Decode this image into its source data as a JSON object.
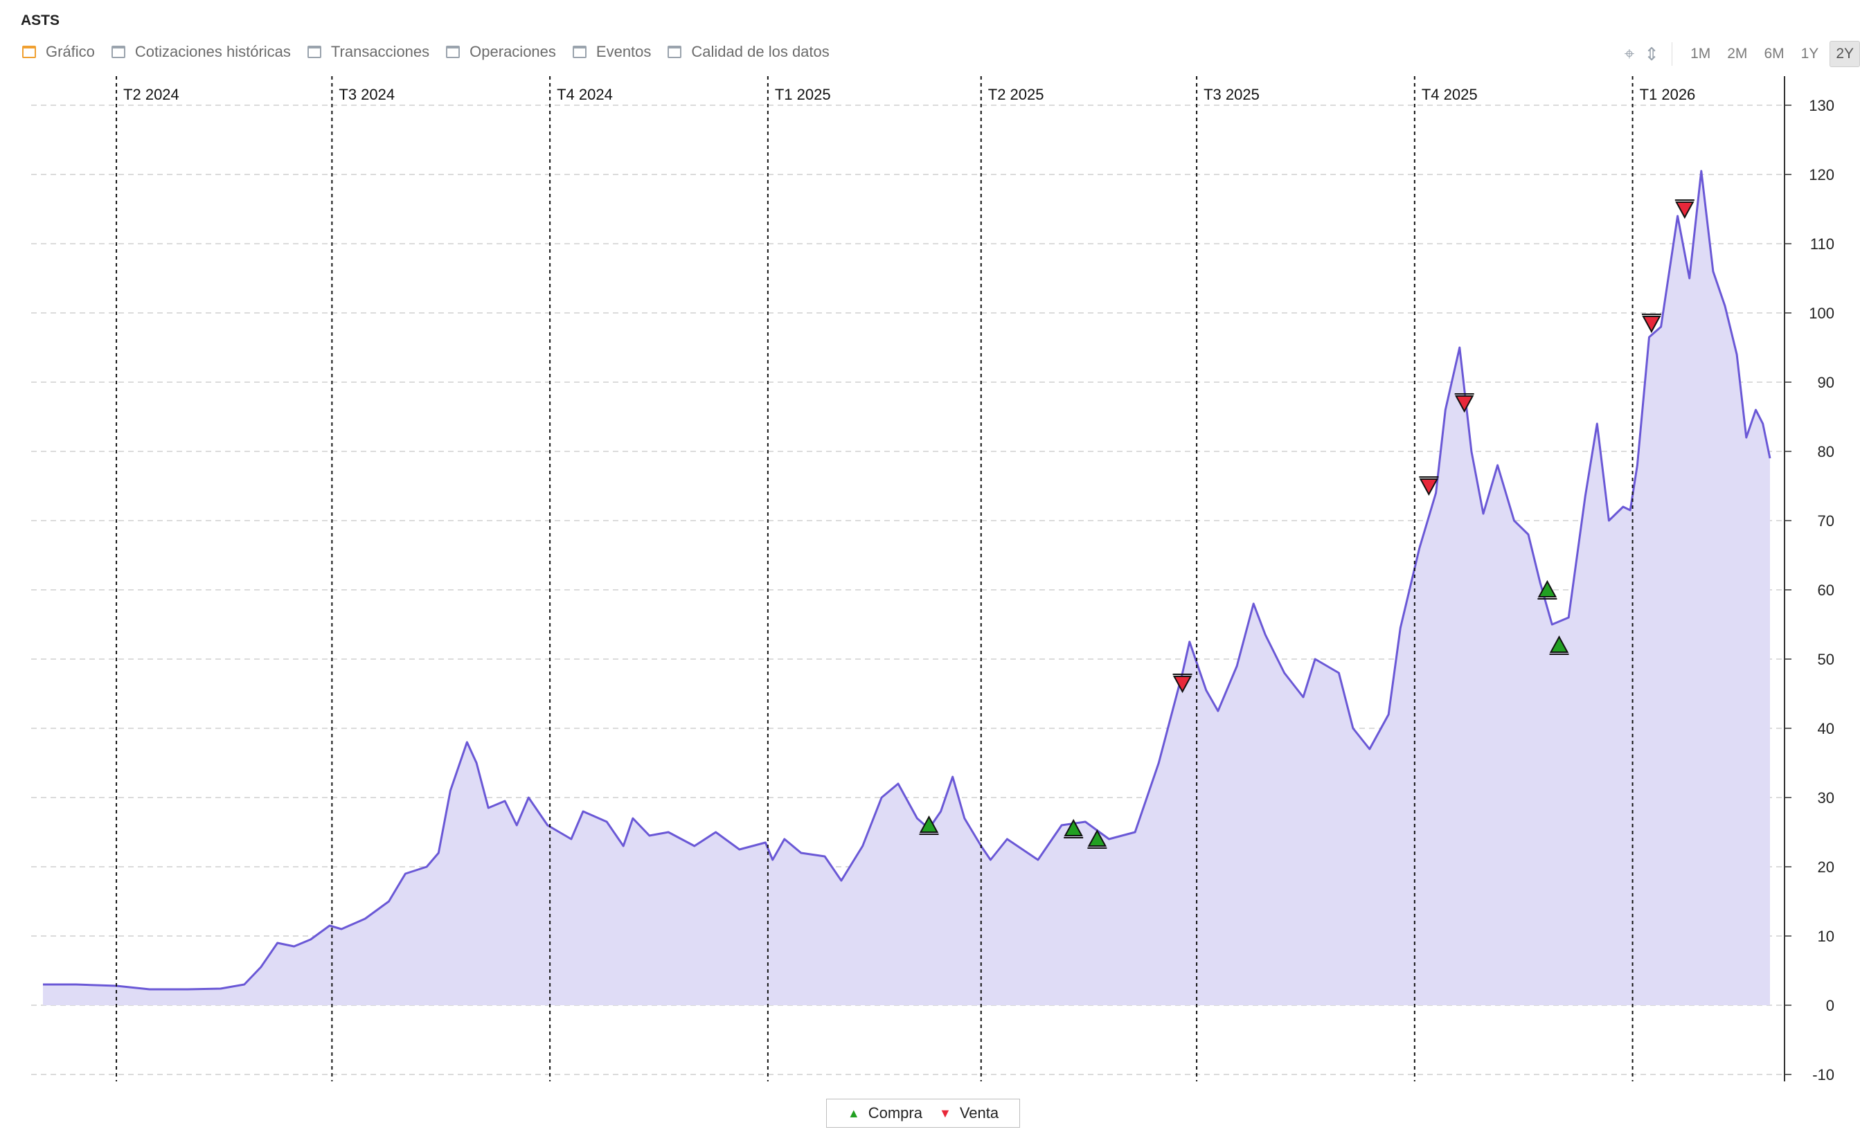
{
  "title": "ASTS",
  "tabs": [
    {
      "label": "Gráfico",
      "active": true
    },
    {
      "label": "Cotizaciones históricas",
      "active": false
    },
    {
      "label": "Transacciones",
      "active": false
    },
    {
      "label": "Operaciones",
      "active": false
    },
    {
      "label": "Eventos",
      "active": false
    },
    {
      "label": "Calidad de los datos",
      "active": false
    }
  ],
  "tools": {
    "crosshair_icon": "crosshair-icon",
    "scale_icon": "vertical-scale-icon"
  },
  "ranges": [
    {
      "label": "1M",
      "active": false
    },
    {
      "label": "2M",
      "active": false
    },
    {
      "label": "6M",
      "active": false
    },
    {
      "label": "1Y",
      "active": false
    },
    {
      "label": "2Y",
      "active": true
    }
  ],
  "legend": {
    "buy_label": "Compra",
    "sell_label": "Venta"
  },
  "colors": {
    "line": "#6a58d6",
    "fill": "#dfdcf6",
    "buy": "#22a022",
    "sell": "#e8283a",
    "active_tab": "#f0a030"
  },
  "chart_data": {
    "type": "area",
    "x_start": "2024-03-01",
    "x_end": "2026-02-28",
    "ylim": [
      -10,
      130
    ],
    "yticks": [
      -10,
      0,
      10,
      20,
      30,
      40,
      50,
      60,
      70,
      80,
      90,
      100,
      110,
      120,
      130
    ],
    "grid": true,
    "quarters": [
      {
        "label": "T2 2024",
        "date": "2024-04-01"
      },
      {
        "label": "T3 2024",
        "date": "2024-07-01"
      },
      {
        "label": "T4 2024",
        "date": "2024-10-01"
      },
      {
        "label": "T1 2025",
        "date": "2025-01-01"
      },
      {
        "label": "T2 2025",
        "date": "2025-04-01"
      },
      {
        "label": "T3 2025",
        "date": "2025-07-01"
      },
      {
        "label": "T4 2025",
        "date": "2025-10-01"
      },
      {
        "label": "T1 2026",
        "date": "2026-01-01"
      }
    ],
    "series": [
      {
        "values": [
          [
            "2024-03-01",
            3.0
          ],
          [
            "2024-03-15",
            3.0
          ],
          [
            "2024-04-01",
            2.8
          ],
          [
            "2024-04-15",
            2.3
          ],
          [
            "2024-05-01",
            2.3
          ],
          [
            "2024-05-15",
            2.4
          ],
          [
            "2024-05-25",
            3.0
          ],
          [
            "2024-06-01",
            5.5
          ],
          [
            "2024-06-08",
            9.0
          ],
          [
            "2024-06-15",
            8.5
          ],
          [
            "2024-06-22",
            9.5
          ],
          [
            "2024-06-30",
            11.5
          ],
          [
            "2024-07-05",
            11.0
          ],
          [
            "2024-07-15",
            12.5
          ],
          [
            "2024-07-25",
            15.0
          ],
          [
            "2024-08-01",
            19.0
          ],
          [
            "2024-08-10",
            20.0
          ],
          [
            "2024-08-15",
            22.0
          ],
          [
            "2024-08-20",
            31.0
          ],
          [
            "2024-08-27",
            38.0
          ],
          [
            "2024-08-31",
            35.0
          ],
          [
            "2024-09-05",
            28.5
          ],
          [
            "2024-09-12",
            29.5
          ],
          [
            "2024-09-17",
            26.0
          ],
          [
            "2024-09-22",
            30.0
          ],
          [
            "2024-09-30",
            26.0
          ],
          [
            "2024-10-10",
            24.0
          ],
          [
            "2024-10-15",
            28.0
          ],
          [
            "2024-10-25",
            26.5
          ],
          [
            "2024-11-01",
            23.0
          ],
          [
            "2024-11-05",
            27.0
          ],
          [
            "2024-11-12",
            24.5
          ],
          [
            "2024-11-20",
            25.0
          ],
          [
            "2024-12-01",
            23.0
          ],
          [
            "2024-12-10",
            25.0
          ],
          [
            "2024-12-20",
            22.5
          ],
          [
            "2024-12-31",
            23.5
          ],
          [
            "2025-01-03",
            21.0
          ],
          [
            "2025-01-08",
            24.0
          ],
          [
            "2025-01-15",
            22.0
          ],
          [
            "2025-01-25",
            21.5
          ],
          [
            "2025-02-01",
            18.0
          ],
          [
            "2025-02-10",
            23.0
          ],
          [
            "2025-02-18",
            30.0
          ],
          [
            "2025-02-25",
            32.0
          ],
          [
            "2025-03-05",
            27.0
          ],
          [
            "2025-03-10",
            25.5
          ],
          [
            "2025-03-15",
            28.0
          ],
          [
            "2025-03-20",
            33.0
          ],
          [
            "2025-03-25",
            27.0
          ],
          [
            "2025-04-01",
            23.0
          ],
          [
            "2025-04-05",
            21.0
          ],
          [
            "2025-04-12",
            24.0
          ],
          [
            "2025-04-25",
            21.0
          ],
          [
            "2025-05-01",
            24.0
          ],
          [
            "2025-05-05",
            26.0
          ],
          [
            "2025-05-15",
            26.5
          ],
          [
            "2025-05-25",
            24.0
          ],
          [
            "2025-06-05",
            25.0
          ],
          [
            "2025-06-15",
            35.0
          ],
          [
            "2025-06-25",
            48.0
          ],
          [
            "2025-06-28",
            52.5
          ],
          [
            "2025-07-05",
            45.5
          ],
          [
            "2025-07-10",
            42.5
          ],
          [
            "2025-07-18",
            49.0
          ],
          [
            "2025-07-25",
            58.0
          ],
          [
            "2025-07-30",
            53.5
          ],
          [
            "2025-08-07",
            48.0
          ],
          [
            "2025-08-15",
            44.5
          ],
          [
            "2025-08-20",
            50.0
          ],
          [
            "2025-08-30",
            48.0
          ],
          [
            "2025-09-05",
            40.0
          ],
          [
            "2025-09-12",
            37.0
          ],
          [
            "2025-09-20",
            42.0
          ],
          [
            "2025-09-25",
            54.5
          ],
          [
            "2025-10-03",
            66.0
          ],
          [
            "2025-10-10",
            74.0
          ],
          [
            "2025-10-14",
            86.0
          ],
          [
            "2025-10-20",
            95.0
          ],
          [
            "2025-10-25",
            80.0
          ],
          [
            "2025-10-30",
            71.0
          ],
          [
            "2025-11-05",
            78.0
          ],
          [
            "2025-11-12",
            70.0
          ],
          [
            "2025-11-18",
            68.0
          ],
          [
            "2025-11-23",
            61.0
          ],
          [
            "2025-11-28",
            55.0
          ],
          [
            "2025-12-05",
            56.0
          ],
          [
            "2025-12-12",
            73.5
          ],
          [
            "2025-12-17",
            84.0
          ],
          [
            "2025-12-22",
            70.0
          ],
          [
            "2025-12-28",
            72.0
          ],
          [
            "2025-12-31",
            71.5
          ],
          [
            "2026-01-03",
            78.0
          ],
          [
            "2026-01-08",
            96.5
          ],
          [
            "2026-01-13",
            98.0
          ],
          [
            "2026-01-20",
            114.0
          ],
          [
            "2026-01-25",
            105.0
          ],
          [
            "2026-01-30",
            120.5
          ],
          [
            "2026-02-04",
            106.0
          ],
          [
            "2026-02-09",
            101.0
          ],
          [
            "2026-02-14",
            94.0
          ],
          [
            "2026-02-18",
            82.0
          ],
          [
            "2026-02-22",
            86.0
          ],
          [
            "2026-02-25",
            84.0
          ],
          [
            "2026-02-28",
            79.0
          ]
        ]
      }
    ],
    "markers": [
      {
        "type": "buy",
        "date": "2025-03-10",
        "value": 26.0
      },
      {
        "type": "buy",
        "date": "2025-05-10",
        "value": 25.5
      },
      {
        "type": "buy",
        "date": "2025-05-20",
        "value": 24.0
      },
      {
        "type": "buy",
        "date": "2025-11-26",
        "value": 60.0
      },
      {
        "type": "buy",
        "date": "2025-12-01",
        "value": 52.0
      },
      {
        "type": "sell",
        "date": "2025-06-25",
        "value": 46.5
      },
      {
        "type": "sell",
        "date": "2025-10-07",
        "value": 75.0
      },
      {
        "type": "sell",
        "date": "2025-10-22",
        "value": 87.0
      },
      {
        "type": "sell",
        "date": "2026-01-09",
        "value": 98.5
      },
      {
        "type": "sell",
        "date": "2026-01-23",
        "value": 115.0
      }
    ],
    "legend": [
      "Compra",
      "Venta"
    ]
  }
}
